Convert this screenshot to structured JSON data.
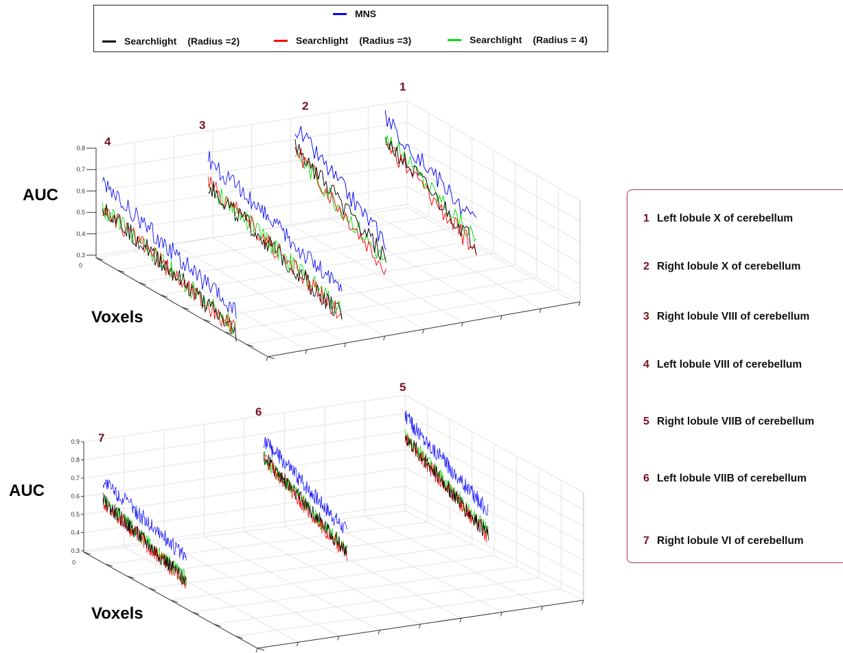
{
  "legend": {
    "items": [
      {
        "label": "MNS",
        "param": "",
        "color": "#0000ff"
      },
      {
        "label": "Searchlight",
        "param": "(Radius =2)",
        "color": "#000000"
      },
      {
        "label": "Searchlight",
        "param": "(Radius =3)",
        "color": "#ff0000"
      },
      {
        "label": "Searchlight",
        "param": "(Radius = 4)",
        "color": "#00dd00"
      }
    ]
  },
  "region_legend": {
    "items": [
      {
        "num": "1",
        "name": "Left lobule X of  cerebellum"
      },
      {
        "num": "2",
        "name": "Right lobule X of cerebellum"
      },
      {
        "num": "3",
        "name": "Right lobule VIII of cerebellum"
      },
      {
        "num": "4",
        "name": "Left lobule VIII of  cerebellum"
      },
      {
        "num": "5",
        "name": "Right lobule VIIB of  cerebellum"
      },
      {
        "num": "6",
        "name": "Left lobule VIIB of  cerebellum"
      },
      {
        "num": "7",
        "name": "Right lobule VI of cerebellum"
      }
    ]
  },
  "chart_data": [
    {
      "type": "line",
      "projection": "3d",
      "zlabel": "AUC",
      "xlabel": "Voxels",
      "zlim": [
        0.3,
        0.8
      ],
      "zticks": [
        "0.8",
        "0.7",
        "0.6",
        "0.5",
        "0.4",
        "0.3"
      ],
      "xticks": [
        "0"
      ],
      "grid": true,
      "groups": [
        {
          "label": "1",
          "n": 48,
          "ranges": {
            "mns": [
              0.72,
              0.47
            ],
            "r2": [
              0.62,
              0.37
            ],
            "r3": [
              0.61,
              0.34
            ],
            "r4": [
              0.64,
              0.4
            ]
          }
        },
        {
          "label": "2",
          "n": 48,
          "ranges": {
            "mns": [
              0.75,
              0.46
            ],
            "r2": [
              0.66,
              0.38
            ],
            "r3": [
              0.65,
              0.33
            ],
            "r4": [
              0.63,
              0.36
            ]
          }
        },
        {
          "label": "3",
          "n": 100,
          "ranges": {
            "mns": [
              0.67,
              0.42
            ],
            "r2": [
              0.55,
              0.3
            ],
            "r3": [
              0.56,
              0.3
            ],
            "r4": [
              0.55,
              0.32
            ]
          }
        },
        {
          "label": "4",
          "n": 100,
          "ranges": {
            "mns": [
              0.64,
              0.4
            ],
            "r2": [
              0.54,
              0.3
            ],
            "r3": [
              0.53,
              0.31
            ],
            "r4": [
              0.53,
              0.32
            ]
          }
        }
      ]
    },
    {
      "type": "line",
      "projection": "3d",
      "zlabel": "AUC",
      "xlabel": "Voxels",
      "zlim": [
        0.3,
        0.9
      ],
      "zticks": [
        "0.9",
        "0.8",
        "0.7",
        "0.6",
        "0.5",
        "0.4",
        "0.3"
      ],
      "xticks": [
        "0"
      ],
      "grid": true,
      "groups": [
        {
          "label": "5",
          "n": 150,
          "ranges": {
            "mns": [
              0.82,
              0.55
            ],
            "r2": [
              0.71,
              0.42
            ],
            "r3": [
              0.7,
              0.41
            ],
            "r4": [
              0.71,
              0.44
            ]
          }
        },
        {
          "label": "6",
          "n": 150,
          "ranges": {
            "mns": [
              0.79,
              0.54
            ],
            "r2": [
              0.7,
              0.43
            ],
            "r3": [
              0.69,
              0.41
            ],
            "r4": [
              0.7,
              0.43
            ]
          }
        },
        {
          "label": "7",
          "n": 150,
          "ranges": {
            "mns": [
              0.68,
              0.51
            ],
            "r2": [
              0.57,
              0.38
            ],
            "r3": [
              0.56,
              0.37
            ],
            "r4": [
              0.57,
              0.39
            ]
          }
        }
      ]
    }
  ]
}
